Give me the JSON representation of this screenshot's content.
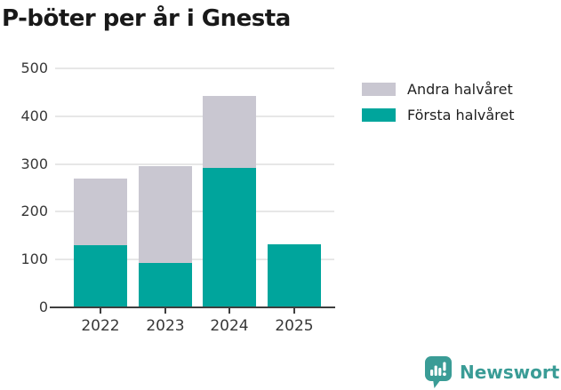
{
  "title": "P-böter per år i Gnesta",
  "legend": [
    {
      "label": "Andra halvåret",
      "color": "#c9c7d1"
    },
    {
      "label": "Första halvåret",
      "color": "#00a59c"
    }
  ],
  "chart_data": {
    "type": "bar",
    "stacked": true,
    "title": "P-böter per år i Gnesta",
    "categories": [
      "2022",
      "2023",
      "2024",
      "2025"
    ],
    "series": [
      {
        "name": "Första halvåret",
        "key": "forsta-halvaret",
        "color": "#00a59c",
        "values": [
          130,
          93,
          292,
          132
        ]
      },
      {
        "name": "Andra halvåret",
        "key": "andra-halvaret",
        "color": "#c9c7d1",
        "values": [
          140,
          202,
          151,
          0
        ]
      }
    ],
    "totals": [
      270,
      295,
      443,
      132
    ],
    "ylim": [
      0,
      500
    ],
    "yticks": [
      0,
      100,
      200,
      300,
      400,
      500
    ],
    "xlabel": "",
    "ylabel": "",
    "grid": true,
    "legend_position": "top-right"
  },
  "branding": {
    "logo_text": "Newsworthy",
    "logo_icon": "bar-chart-speech-bubble-icon",
    "logo_color": "#3a9c96"
  },
  "colors": {
    "first_half": "#00a59c",
    "second_half": "#c9c7d1",
    "gridline": "#e7e7e7",
    "axis": "#3e3e3e",
    "tick_text": "#383838",
    "title_text": "#191919"
  }
}
